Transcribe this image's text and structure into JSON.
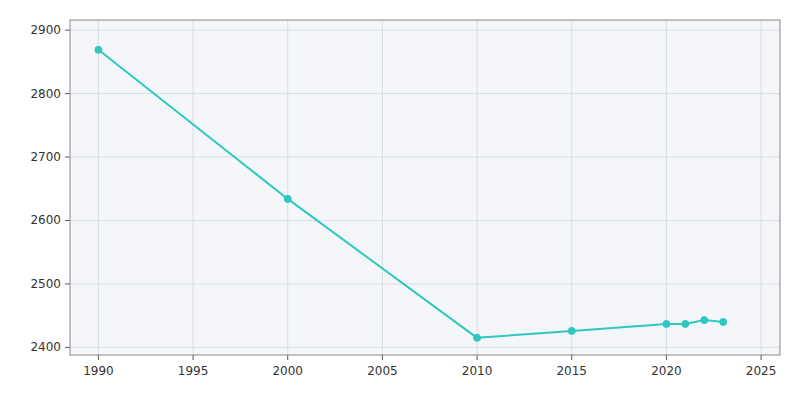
{
  "chart_data": {
    "type": "line",
    "x": [
      1990,
      2000,
      2010,
      2015,
      2020,
      2021,
      2022,
      2023
    ],
    "values": [
      2869,
      2634,
      2415,
      2426,
      2437,
      2437,
      2443,
      2440
    ],
    "color": "#2ec8c0",
    "marker": "circle",
    "xlim": [
      1988.5,
      2026
    ],
    "ylim": [
      2388,
      2916
    ],
    "xticks": [
      1990,
      1995,
      2000,
      2005,
      2010,
      2015,
      2020,
      2025
    ],
    "yticks": [
      2400,
      2500,
      2600,
      2700,
      2800,
      2900
    ],
    "grid": true
  }
}
